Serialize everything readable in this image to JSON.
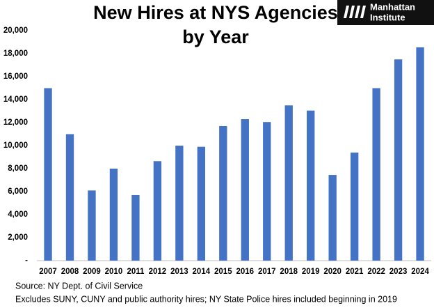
{
  "chart_data": {
    "type": "bar",
    "title": [
      "New Hires at NYS Agencies",
      "by Year"
    ],
    "logo": [
      "Manhattan",
      "Institute"
    ],
    "categories": [
      "2007",
      "2008",
      "2009",
      "2010",
      "2011",
      "2012",
      "2013",
      "2014",
      "2015",
      "2016",
      "2017",
      "2018",
      "2019",
      "2020",
      "2021",
      "2022",
      "2023",
      "2024"
    ],
    "values": [
      15000,
      11000,
      6100,
      8000,
      5700,
      8650,
      10000,
      9900,
      11700,
      12300,
      12050,
      13500,
      13050,
      7450,
      9400,
      15000,
      17500,
      18550
    ],
    "color": "#4472c4",
    "ylim": [
      0,
      20000
    ],
    "yticks": [
      {
        "value": 0,
        "label": "-"
      },
      {
        "value": 2000,
        "label": "2,000"
      },
      {
        "value": 4000,
        "label": "4,000"
      },
      {
        "value": 6000,
        "label": "6,000"
      },
      {
        "value": 8000,
        "label": "8,000"
      },
      {
        "value": 10000,
        "label": "10,000"
      },
      {
        "value": 12000,
        "label": "12,000"
      },
      {
        "value": 14000,
        "label": "14,000"
      },
      {
        "value": 16000,
        "label": "16,000"
      },
      {
        "value": 18000,
        "label": "18,000"
      },
      {
        "value": 20000,
        "label": "20,000"
      }
    ],
    "grid": false,
    "notes": [
      "Source: NY Dept. of Civil Service",
      "Excludes SUNY, CUNY and public authority hires; NY State Police hires included beginning in 2019"
    ]
  }
}
